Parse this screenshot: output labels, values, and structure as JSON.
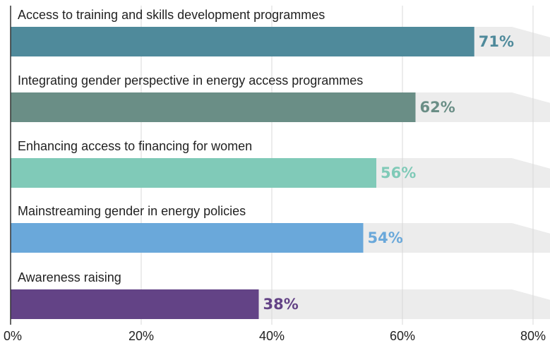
{
  "chart_data": {
    "type": "bar",
    "orientation": "horizontal",
    "categories": [
      "Access to training and skills development programmes",
      "Integrating gender perspective in energy access programmes",
      "Enhancing access to financing for women",
      "Mainstreaming gender in energy policies",
      "Awareness raising"
    ],
    "values": [
      71,
      62,
      56,
      54,
      38
    ],
    "value_labels": [
      "71%",
      "62%",
      "56%",
      "54%",
      "38%"
    ],
    "colors": [
      "#4f8a9b",
      "#6a8e86",
      "#80cab8",
      "#6aa8da",
      "#634386"
    ],
    "xlim": [
      0,
      80
    ],
    "xticks": [
      {
        "value": 0,
        "label": "0%"
      },
      {
        "value": 20,
        "label": "20%"
      },
      {
        "value": 40,
        "label": "40%"
      },
      {
        "value": 60,
        "label": "60%"
      },
      {
        "value": 80,
        "label": "80%"
      }
    ],
    "grid": true
  }
}
